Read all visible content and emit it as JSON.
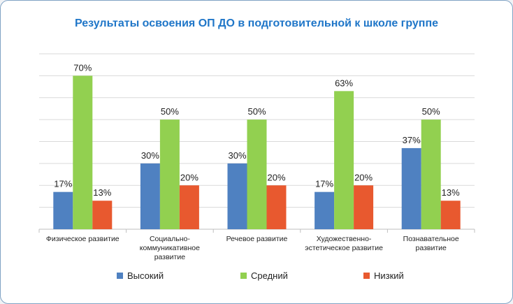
{
  "chart_data": {
    "type": "bar",
    "title": "Результаты освоения ОП ДО в подготовительной к школе группе",
    "categories": [
      [
        "Физическое развитие"
      ],
      [
        "Социально-",
        "коммуникативное",
        "развитие"
      ],
      [
        "Речевое развитие"
      ],
      [
        "Художественно-",
        "эстетическое развитие"
      ],
      [
        "Познавательное",
        "развитие"
      ]
    ],
    "series": [
      {
        "name": "Высокий",
        "color": "#4f81c1",
        "values": [
          17,
          30,
          30,
          17,
          37
        ],
        "labels": [
          "17%",
          "30%",
          "30%",
          "17%",
          "37%"
        ]
      },
      {
        "name": "Средний",
        "color": "#92d050",
        "values": [
          70,
          50,
          50,
          63,
          50
        ],
        "labels": [
          "70%",
          "50%",
          "50%",
          "63%",
          "50%"
        ]
      },
      {
        "name": "Низкий",
        "color": "#e8592f",
        "values": [
          13,
          20,
          20,
          20,
          13
        ],
        "labels": [
          "13%",
          "20%",
          "20%",
          "20%",
          "13%"
        ]
      }
    ],
    "ylim": [
      0,
      80
    ],
    "grid": true,
    "legend": "bottom"
  }
}
